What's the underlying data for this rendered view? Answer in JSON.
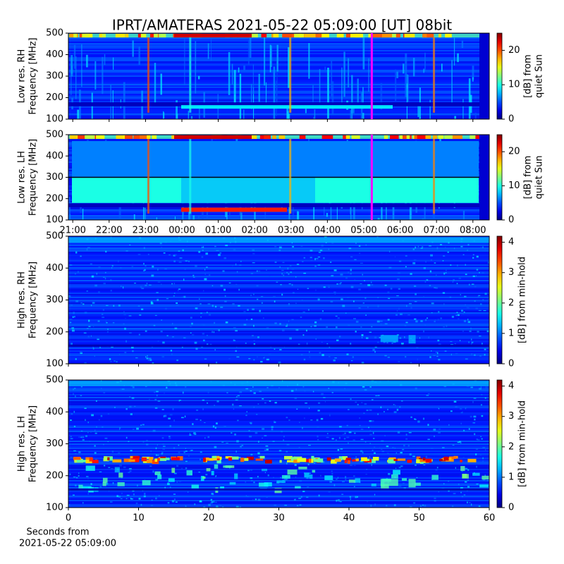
{
  "chart_data": [
    {
      "type": "heatmap",
      "title": "IPRT/AMATERAS 2021-05-22 05:09:00 [UT]   08bit",
      "colormap": "jet",
      "ylabel": [
        "Low res. RH",
        "Frequency [MHz]"
      ],
      "ylim": [
        100,
        500
      ],
      "yticks": [
        100,
        200,
        300,
        400,
        500
      ],
      "xlim": [
        20.88,
        32.45
      ],
      "xticks": [
        {
          "value": 21,
          "label": "21:00"
        },
        {
          "value": 22,
          "label": "22:00"
        },
        {
          "value": 23,
          "label": "23:00"
        },
        {
          "value": 24,
          "label": "00:00"
        },
        {
          "value": 25,
          "label": "01:00"
        },
        {
          "value": 26,
          "label": "02:00"
        },
        {
          "value": 27,
          "label": "03:00"
        },
        {
          "value": 28,
          "label": "04:00"
        },
        {
          "value": 29,
          "label": "05:00"
        },
        {
          "value": 30,
          "label": "06:00"
        },
        {
          "value": 31,
          "label": "07:00"
        },
        {
          "value": 32,
          "label": "08:00"
        }
      ],
      "show_xtick_labels": false,
      "marker_x": 29.22,
      "marker_color": "#ff00ff",
      "clim": [
        0,
        25
      ],
      "cticks": [
        0,
        10,
        20
      ],
      "clabel": [
        "[dB] from",
        "quiet Sun"
      ]
    },
    {
      "type": "heatmap",
      "colormap": "jet",
      "ylabel": [
        "Low res. LH",
        "Frequency [MHz]"
      ],
      "ylim": [
        100,
        500
      ],
      "yticks": [
        100,
        200,
        300,
        400,
        500
      ],
      "xlim": [
        20.88,
        32.45
      ],
      "xticks": [
        {
          "value": 21,
          "label": "21:00"
        },
        {
          "value": 22,
          "label": "22:00"
        },
        {
          "value": 23,
          "label": "23:00"
        },
        {
          "value": 24,
          "label": "00:00"
        },
        {
          "value": 25,
          "label": "01:00"
        },
        {
          "value": 26,
          "label": "02:00"
        },
        {
          "value": 27,
          "label": "03:00"
        },
        {
          "value": 28,
          "label": "04:00"
        },
        {
          "value": 29,
          "label": "05:00"
        },
        {
          "value": 30,
          "label": "06:00"
        },
        {
          "value": 31,
          "label": "07:00"
        },
        {
          "value": 32,
          "label": "08:00"
        }
      ],
      "show_xtick_labels": true,
      "marker_x": 29.22,
      "marker_color": "#ff00ff",
      "clim": [
        0,
        25
      ],
      "cticks": [
        0,
        10,
        20
      ],
      "clabel": [
        "[dB] from",
        "quiet Sun"
      ]
    },
    {
      "type": "heatmap",
      "colormap": "jet",
      "ylabel": [
        "High res. RH",
        "Frequency [MHz]"
      ],
      "ylim": [
        100,
        500
      ],
      "yticks": [
        100,
        200,
        300,
        400,
        500
      ],
      "xlim": [
        0,
        60
      ],
      "xticks": [
        0,
        10,
        20,
        30,
        40,
        50,
        60
      ],
      "show_xtick_labels": false,
      "clim": [
        0,
        4.2
      ],
      "cticks": [
        0,
        1,
        2,
        3,
        4
      ],
      "clabel": [
        "[dB] from min-hold"
      ]
    },
    {
      "type": "heatmap",
      "colormap": "jet",
      "ylabel": [
        "High res. LH",
        "Frequency [MHz]"
      ],
      "ylim": [
        100,
        500
      ],
      "yticks": [
        100,
        200,
        300,
        400,
        500
      ],
      "xlim": [
        0,
        60
      ],
      "xticks": [
        0,
        10,
        20,
        30,
        40,
        50,
        60
      ],
      "show_xtick_labels": true,
      "xlabel": [
        "Seconds from",
        "2021-05-22 05:09:00"
      ],
      "clim": [
        0,
        4.2
      ],
      "cticks": [
        0,
        1,
        2,
        3,
        4
      ],
      "clabel": [
        "[dB] from min-hold"
      ]
    }
  ]
}
